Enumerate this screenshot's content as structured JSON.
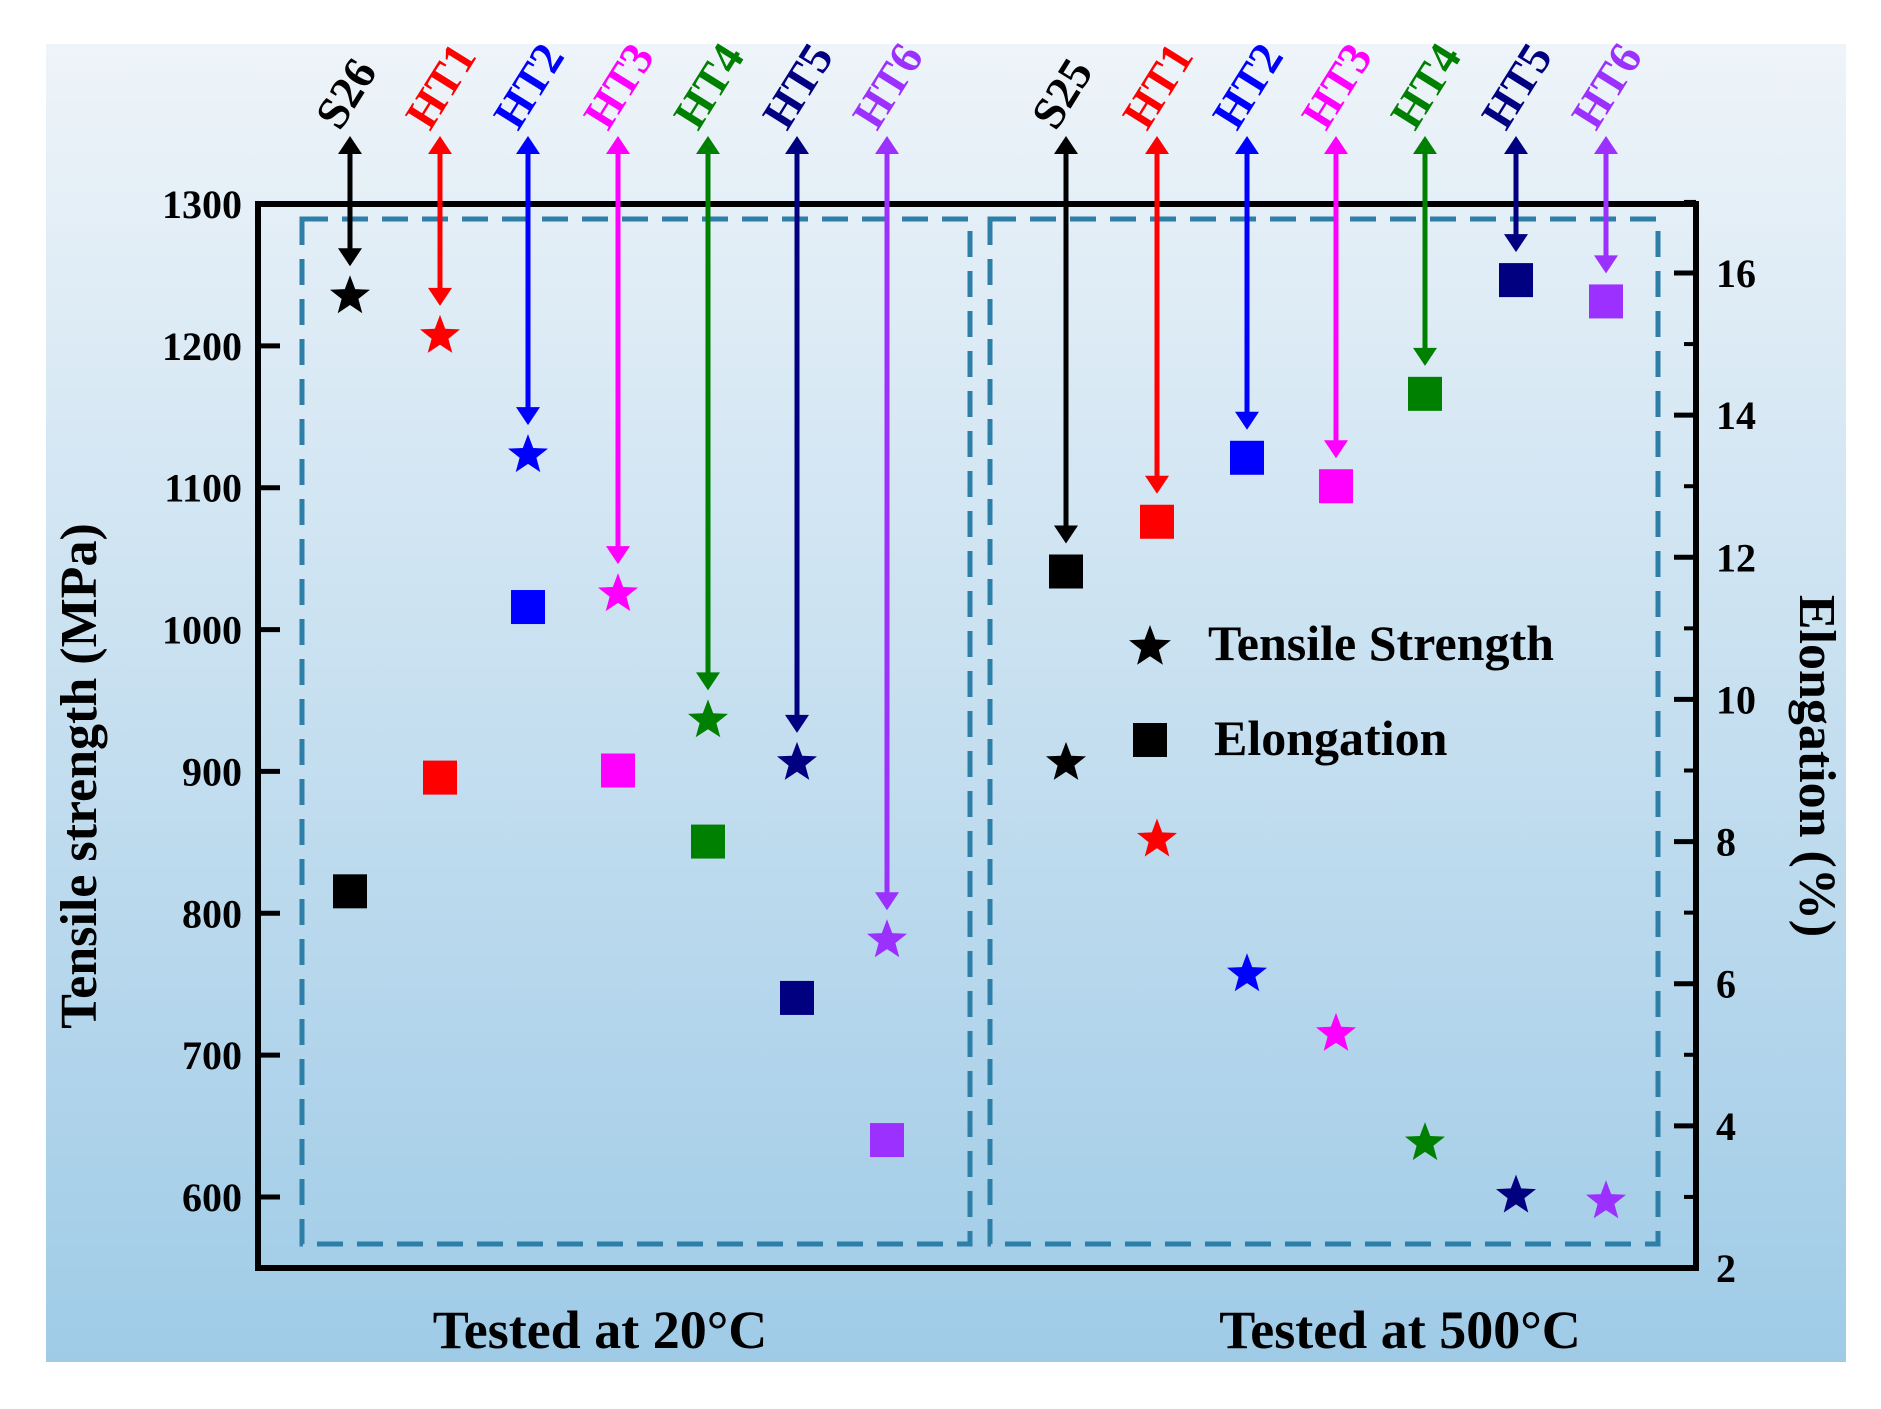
{
  "chart_data": {
    "type": "scatter",
    "ylabel": "Tensile strength (MPa)",
    "y2label": "Elongation (%)",
    "ylim": [
      580,
      1300
    ],
    "yticks": [
      600,
      700,
      800,
      900,
      1000,
      1100,
      1200,
      1300
    ],
    "y2lim": [
      2,
      17
    ],
    "y2ticks": [
      2,
      4,
      6,
      8,
      10,
      12,
      14,
      16
    ],
    "groups": [
      {
        "label": "Tested at 20°C",
        "samples": [
          {
            "name": "S26",
            "color": "#000000",
            "tensile_strength": 1235,
            "elongation": 7.3,
            "arrow_to": "tensile"
          },
          {
            "name": "HT1",
            "color": "#ff0000",
            "tensile_strength": 1207,
            "elongation": 8.9,
            "arrow_to": "tensile"
          },
          {
            "name": "HT2",
            "color": "#0000ff",
            "tensile_strength": 1123,
            "elongation": 11.3,
            "arrow_to": "tensile"
          },
          {
            "name": "HT3",
            "color": "#ff00ff",
            "tensile_strength": 1025,
            "elongation": 9.0,
            "arrow_to": "tensile"
          },
          {
            "name": "HT4",
            "color": "#008000",
            "tensile_strength": 936,
            "elongation": 8.0,
            "arrow_to": "tensile"
          },
          {
            "name": "HT5",
            "color": "#000080",
            "tensile_strength": 906,
            "elongation": 5.8,
            "arrow_to": "tensile"
          },
          {
            "name": "HT6",
            "color": "#9b30ff",
            "tensile_strength": 781,
            "elongation": 3.8,
            "arrow_to": "tensile"
          }
        ]
      },
      {
        "label": "Tested at 500°C",
        "samples": [
          {
            "name": "S25",
            "color": "#000000",
            "tensile_strength": 906,
            "elongation": 11.8,
            "arrow_to": "elongation"
          },
          {
            "name": "HT1",
            "color": "#ff0000",
            "tensile_strength": 852,
            "elongation": 12.5,
            "arrow_to": "elongation"
          },
          {
            "name": "HT2",
            "color": "#0000ff",
            "tensile_strength": 757,
            "elongation": 13.4,
            "arrow_to": "elongation"
          },
          {
            "name": "HT3",
            "color": "#ff00ff",
            "tensile_strength": 715,
            "elongation": 13.0,
            "arrow_to": "elongation"
          },
          {
            "name": "HT4",
            "color": "#008000",
            "tensile_strength": 638,
            "elongation": 14.3,
            "arrow_to": "elongation"
          },
          {
            "name": "HT5",
            "color": "#000080",
            "tensile_strength": 601,
            "elongation": 15.9,
            "arrow_to": "elongation"
          },
          {
            "name": "HT6",
            "color": "#9b30ff",
            "tensile_strength": 597,
            "elongation": 15.6,
            "arrow_to": "elongation"
          }
        ]
      }
    ],
    "legend": [
      {
        "label": "Tensile Strength",
        "marker": "star"
      },
      {
        "label": "Elongation",
        "marker": "square"
      }
    ],
    "legend_position": "right-center"
  }
}
